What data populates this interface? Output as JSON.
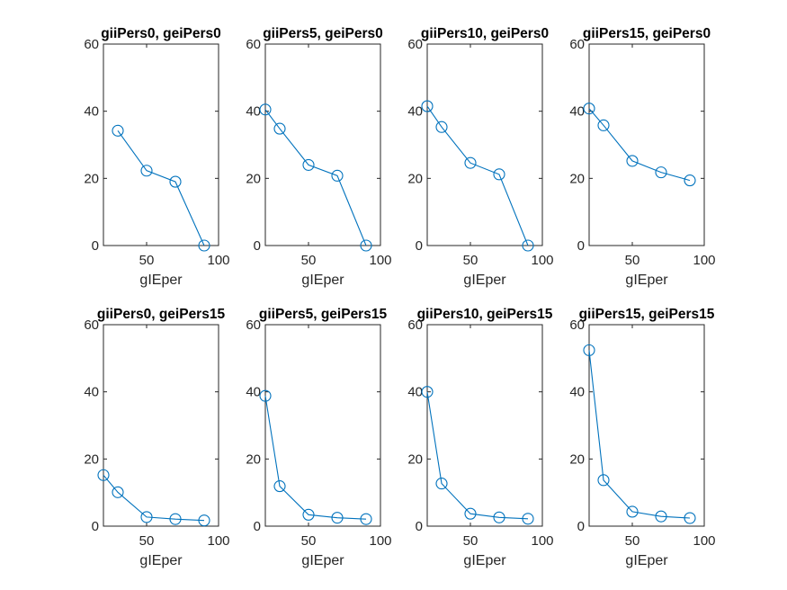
{
  "chart_data": [
    {
      "type": "line",
      "title": "giiPers0, geiPers0",
      "xlabel": "gIEper",
      "xlim": [
        20,
        100
      ],
      "ylim": [
        0,
        60
      ],
      "xticks": [
        50,
        100
      ],
      "yticks": [
        0,
        20,
        40,
        60
      ],
      "x": [
        30,
        50,
        70,
        90
      ],
      "y": [
        34.2,
        22.3,
        19.0,
        0.0
      ]
    },
    {
      "type": "line",
      "title": "giiPers5, geiPers0",
      "xlabel": "gIEper",
      "xlim": [
        20,
        100
      ],
      "ylim": [
        0,
        60
      ],
      "xticks": [
        50,
        100
      ],
      "yticks": [
        0,
        20,
        40,
        60
      ],
      "x": [
        20,
        30,
        50,
        70,
        90
      ],
      "y": [
        40.5,
        34.8,
        24.0,
        20.8,
        0.0
      ]
    },
    {
      "type": "line",
      "title": "giiPers10, geiPers0",
      "xlabel": "gIEper",
      "xlim": [
        20,
        100
      ],
      "ylim": [
        0,
        60
      ],
      "xticks": [
        50,
        100
      ],
      "yticks": [
        0,
        20,
        40,
        60
      ],
      "x": [
        20,
        30,
        50,
        70,
        90
      ],
      "y": [
        41.5,
        35.3,
        24.6,
        21.2,
        0.0
      ]
    },
    {
      "type": "line",
      "title": "giiPers15, geiPers0",
      "xlabel": "gIEper",
      "xlim": [
        20,
        100
      ],
      "ylim": [
        0,
        60
      ],
      "xticks": [
        50,
        100
      ],
      "yticks": [
        0,
        20,
        40,
        60
      ],
      "x": [
        20,
        30,
        50,
        70,
        90
      ],
      "y": [
        40.8,
        35.8,
        25.2,
        21.8,
        19.4
      ]
    },
    {
      "type": "line",
      "title": "giiPers0, geiPers15",
      "xlabel": "gIEper",
      "xlim": [
        20,
        100
      ],
      "ylim": [
        0,
        60
      ],
      "xticks": [
        50,
        100
      ],
      "yticks": [
        0,
        20,
        40,
        60
      ],
      "x": [
        20,
        30,
        50,
        70,
        90
      ],
      "y": [
        15.2,
        10.1,
        2.7,
        2.1,
        1.7
      ]
    },
    {
      "type": "line",
      "title": "giiPers5, geiPers15",
      "xlabel": "gIEper",
      "xlim": [
        20,
        100
      ],
      "ylim": [
        0,
        60
      ],
      "xticks": [
        50,
        100
      ],
      "yticks": [
        0,
        20,
        40,
        60
      ],
      "x": [
        20,
        30,
        50,
        70,
        90
      ],
      "y": [
        38.8,
        11.9,
        3.4,
        2.5,
        2.1
      ]
    },
    {
      "type": "line",
      "title": "giiPers10, geiPers15",
      "xlabel": "gIEper",
      "xlim": [
        20,
        100
      ],
      "ylim": [
        0,
        60
      ],
      "xticks": [
        50,
        100
      ],
      "yticks": [
        0,
        20,
        40,
        60
      ],
      "x": [
        20,
        30,
        50,
        70,
        90
      ],
      "y": [
        40.0,
        12.7,
        3.7,
        2.6,
        2.2
      ]
    },
    {
      "type": "line",
      "title": "giiPers15, geiPers15",
      "xlabel": "gIEper",
      "xlim": [
        20,
        100
      ],
      "ylim": [
        0,
        60
      ],
      "xticks": [
        50,
        100
      ],
      "yticks": [
        0,
        20,
        40,
        60
      ],
      "x": [
        20,
        30,
        50,
        70,
        90
      ],
      "y": [
        52.4,
        13.7,
        4.3,
        2.9,
        2.4
      ]
    }
  ],
  "colors": {
    "series": "#0072BD",
    "axis": "#262626"
  },
  "grid": false,
  "marker": "circle"
}
